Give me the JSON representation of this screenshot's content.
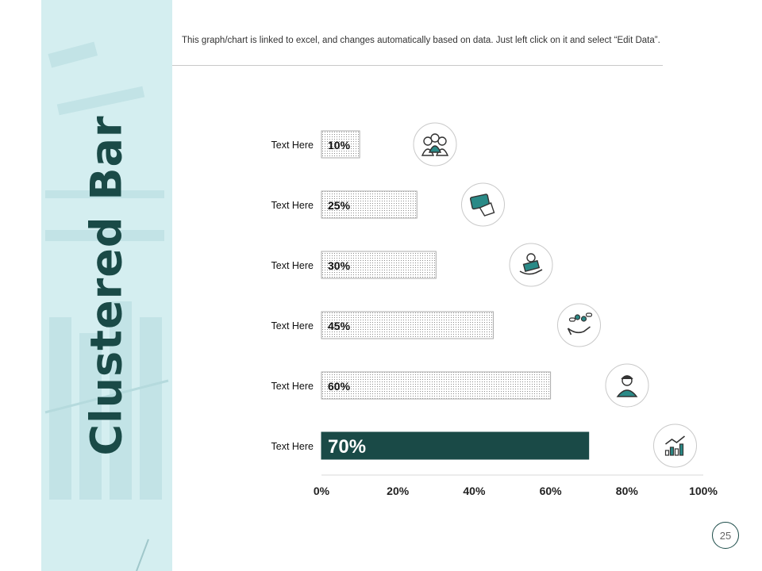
{
  "slide": {
    "title": "Clustered Bar",
    "note": "This graph/chart is linked to excel, and changes automatically based on data. Just left click on it and select “Edit Data”.",
    "page_number": "25"
  },
  "colors": {
    "sidebar": "#d4eef0",
    "title": "#1a4a47",
    "highlight_bar": "#1a4a47",
    "pattern_bar": "#ffffff",
    "icon_accent": "#2a8a87"
  },
  "chart_data": {
    "type": "bar",
    "orientation": "horizontal",
    "categories": [
      "Text Here",
      "Text Here",
      "Text Here",
      "Text Here",
      "Text Here",
      "Text Here"
    ],
    "values": [
      10,
      25,
      30,
      45,
      60,
      70
    ],
    "data_labels": [
      "10%",
      "25%",
      "30%",
      "45%",
      "60%",
      "70%"
    ],
    "xlim": [
      0,
      100
    ],
    "x_ticks": [
      "0%",
      "20%",
      "40%",
      "60%",
      "80%",
      "100%"
    ],
    "highlight_index": 5,
    "icons": [
      "team-icon",
      "credit-card-icon",
      "money-hand-icon",
      "medicine-hand-icon",
      "doctor-icon",
      "growth-chart-icon"
    ],
    "grid": false,
    "legend": "none"
  }
}
